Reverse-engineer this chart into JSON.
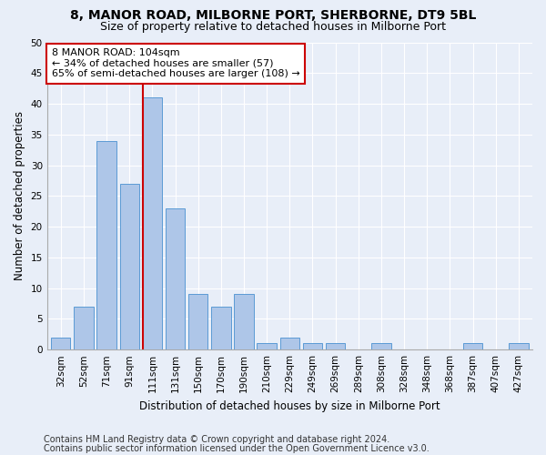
{
  "title": "8, MANOR ROAD, MILBORNE PORT, SHERBORNE, DT9 5BL",
  "subtitle": "Size of property relative to detached houses in Milborne Port",
  "xlabel": "Distribution of detached houses by size in Milborne Port",
  "ylabel": "Number of detached properties",
  "categories": [
    "32sqm",
    "52sqm",
    "71sqm",
    "91sqm",
    "111sqm",
    "131sqm",
    "150sqm",
    "170sqm",
    "190sqm",
    "210sqm",
    "229sqm",
    "249sqm",
    "269sqm",
    "289sqm",
    "308sqm",
    "328sqm",
    "348sqm",
    "368sqm",
    "387sqm",
    "407sqm",
    "427sqm"
  ],
  "values": [
    2,
    7,
    34,
    27,
    41,
    23,
    9,
    7,
    9,
    1,
    2,
    1,
    1,
    0,
    1,
    0,
    0,
    0,
    1,
    0,
    1
  ],
  "bar_color": "#aec6e8",
  "bar_edge_color": "#5b9bd5",
  "annotation_line1": "8 MANOR ROAD: 104sqm",
  "annotation_line2": "← 34% of detached houses are smaller (57)",
  "annotation_line3": "65% of semi-detached houses are larger (108) →",
  "annotation_box_color": "#ffffff",
  "annotation_box_edge_color": "#cc0000",
  "ylim": [
    0,
    50
  ],
  "yticks": [
    0,
    5,
    10,
    15,
    20,
    25,
    30,
    35,
    40,
    45,
    50
  ],
  "vline_color": "#cc0000",
  "footer1": "Contains HM Land Registry data © Crown copyright and database right 2024.",
  "footer2": "Contains public sector information licensed under the Open Government Licence v3.0.",
  "background_color": "#e8eef8",
  "grid_color": "#ffffff",
  "title_fontsize": 10,
  "subtitle_fontsize": 9,
  "label_fontsize": 8.5,
  "annot_fontsize": 8,
  "tick_fontsize": 7.5,
  "footer_fontsize": 7
}
